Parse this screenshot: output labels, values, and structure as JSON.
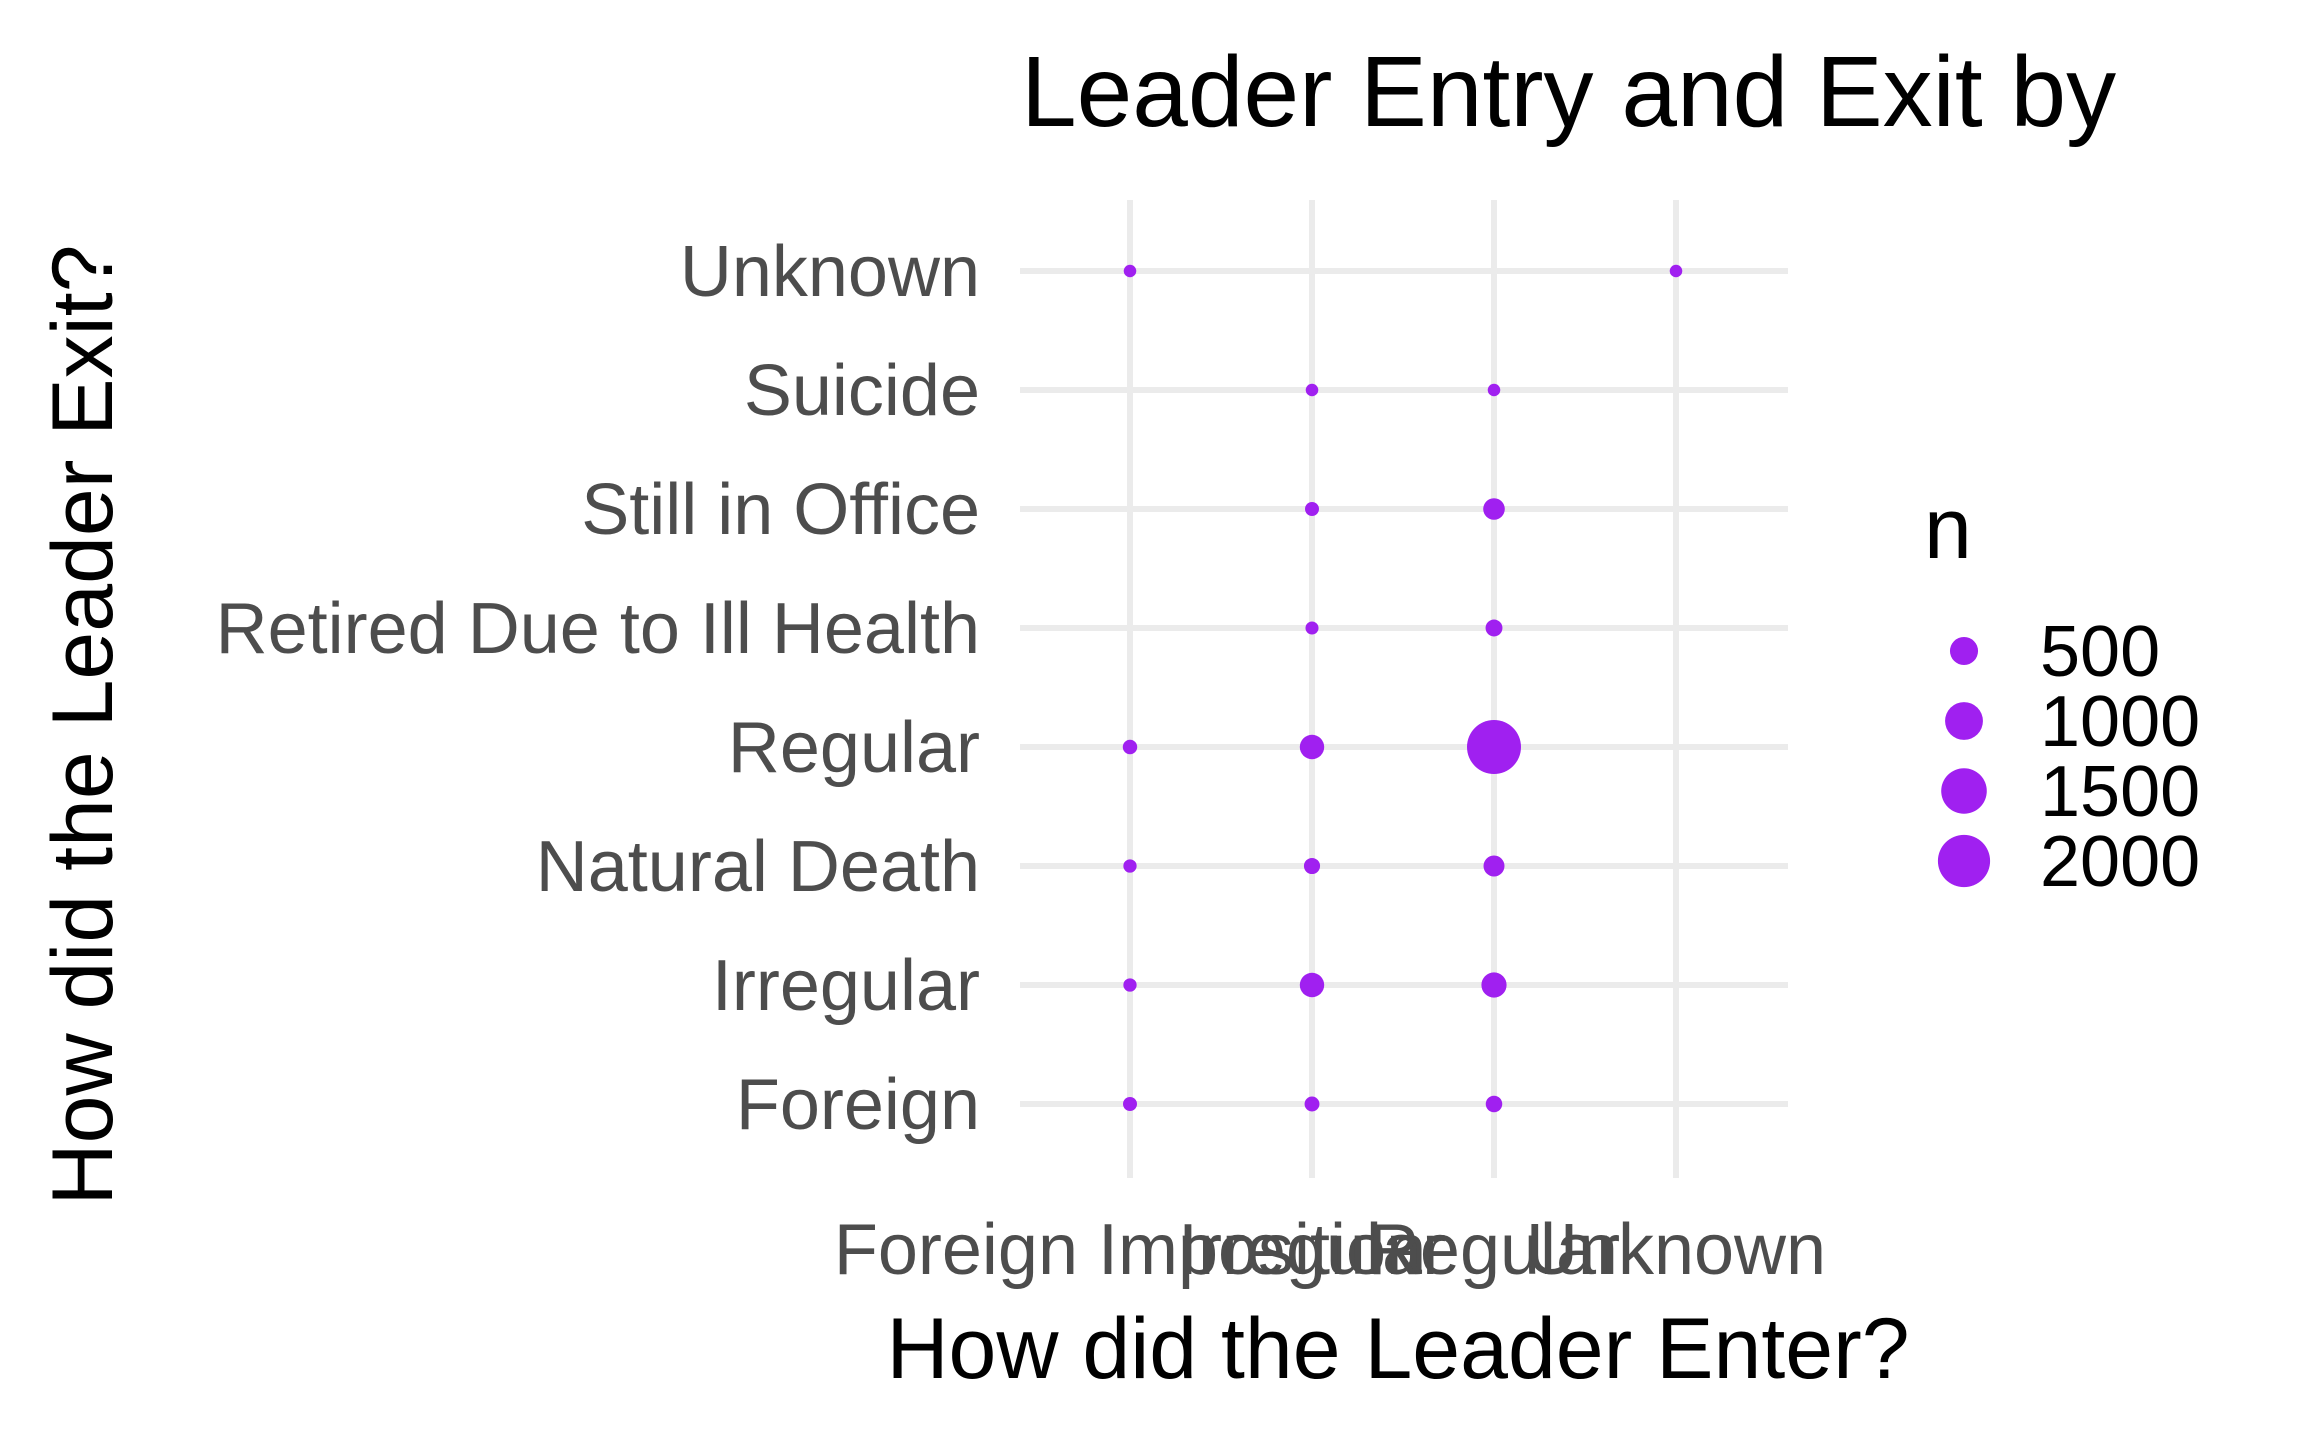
{
  "chart_data": {
    "type": "scatter",
    "title": "Leader Entry and Exit by",
    "xlabel": "How did the Leader Enter?",
    "ylabel": "How did the Leader Exit?",
    "x_categories": [
      "Foreign Imposition",
      "Irregular",
      "Regular",
      "Unknown"
    ],
    "y_categories": [
      "Foreign",
      "Irregular",
      "Natural Death",
      "Regular",
      "Retired Due to Ill Health",
      "Still in Office",
      "Suicide",
      "Unknown"
    ],
    "points": [
      {
        "x": "Foreign Imposition",
        "y": "Unknown",
        "n": 10
      },
      {
        "x": "Unknown",
        "y": "Unknown",
        "n": 10
      },
      {
        "x": "Irregular",
        "y": "Suicide",
        "n": 10
      },
      {
        "x": "Regular",
        "y": "Suicide",
        "n": 10
      },
      {
        "x": "Irregular",
        "y": "Still in Office",
        "n": 40
      },
      {
        "x": "Regular",
        "y": "Still in Office",
        "n": 250
      },
      {
        "x": "Irregular",
        "y": "Retired Due to Ill Health",
        "n": 20
      },
      {
        "x": "Regular",
        "y": "Retired Due to Ill Health",
        "n": 110
      },
      {
        "x": "Foreign Imposition",
        "y": "Regular",
        "n": 50
      },
      {
        "x": "Irregular",
        "y": "Regular",
        "n": 350
      },
      {
        "x": "Regular",
        "y": "Regular",
        "n": 2150
      },
      {
        "x": "Foreign Imposition",
        "y": "Natural Death",
        "n": 25
      },
      {
        "x": "Irregular",
        "y": "Natural Death",
        "n": 90
      },
      {
        "x": "Regular",
        "y": "Natural Death",
        "n": 230
      },
      {
        "x": "Foreign Imposition",
        "y": "Irregular",
        "n": 25
      },
      {
        "x": "Irregular",
        "y": "Irregular",
        "n": 350
      },
      {
        "x": "Regular",
        "y": "Irregular",
        "n": 380
      },
      {
        "x": "Foreign Imposition",
        "y": "Foreign",
        "n": 40
      },
      {
        "x": "Irregular",
        "y": "Foreign",
        "n": 60
      },
      {
        "x": "Regular",
        "y": "Foreign",
        "n": 100
      }
    ],
    "size_legend": {
      "title": "n",
      "breaks": [
        500,
        1000,
        1500,
        2000
      ],
      "labels": [
        "500",
        "1000",
        "1500",
        "2000"
      ]
    },
    "point_color": "#a020f0",
    "grid": true,
    "legend_position": "right"
  }
}
